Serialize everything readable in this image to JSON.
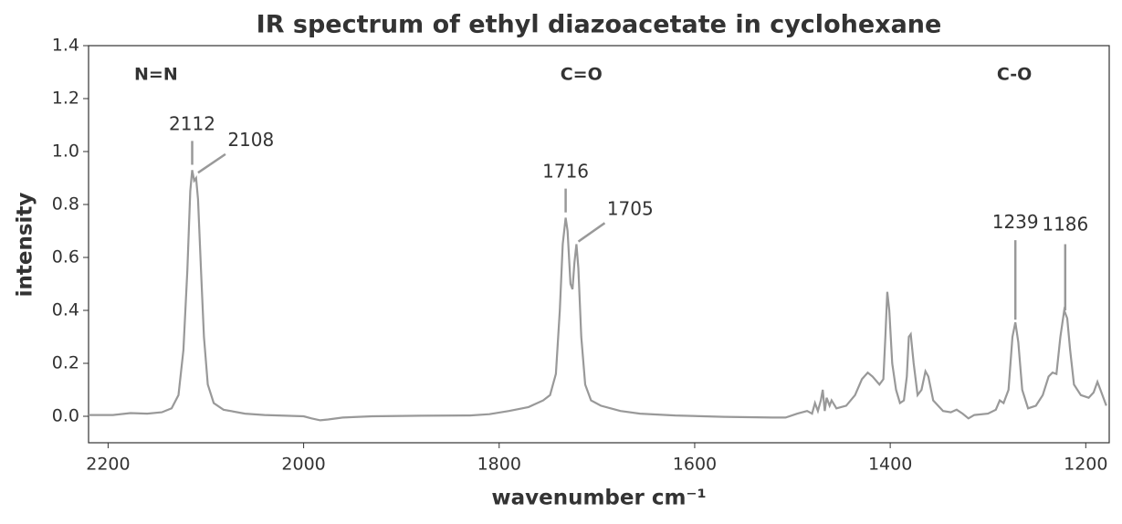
{
  "chart_data": {
    "type": "line",
    "title": "IR spectrum of ethyl diazoacetate in cyclohexane",
    "x_label": "wavenumber cm⁻¹",
    "y_label": "intensity",
    "xlim": [
      2220,
      1176
    ],
    "ylim": [
      -0.1,
      1.4
    ],
    "xticks": [
      2200,
      2000,
      1800,
      1600,
      1400,
      1200
    ],
    "yticks": [
      {
        "value": 0,
        "label": "0.0"
      },
      0.2,
      0.4,
      0.6,
      0.8,
      {
        "value": 1,
        "label": "1.0"
      },
      1.2,
      1.4
    ],
    "series": [
      {
        "name": "ethyl diazoacetate",
        "color": "#999999",
        "x": [
          2220,
          2195,
          2177,
          2160,
          2145,
          2135,
          2128,
          2123,
          2119,
          2116,
          2114,
          2112,
          2110,
          2108,
          2105,
          2102,
          2098,
          2092,
          2082,
          2060,
          2040,
          2000,
          1992,
          1983,
          1975,
          1960,
          1930,
          1880,
          1830,
          1810,
          1790,
          1770,
          1755,
          1748,
          1742,
          1738,
          1735,
          1732,
          1730,
          1727,
          1725,
          1723,
          1721,
          1719,
          1716,
          1712,
          1706,
          1696,
          1686,
          1676,
          1656,
          1620,
          1570,
          1520,
          1507,
          1495,
          1485,
          1480,
          1477,
          1474,
          1471,
          1469,
          1467,
          1465,
          1462,
          1460,
          1455,
          1445,
          1436,
          1429,
          1423,
          1418,
          1411,
          1407,
          1405,
          1403,
          1401,
          1398,
          1394,
          1390,
          1386,
          1383,
          1381,
          1379,
          1376,
          1372,
          1368,
          1364,
          1361,
          1356,
          1346,
          1338,
          1332,
          1326,
          1320,
          1314,
          1300,
          1292,
          1288,
          1284,
          1279,
          1275,
          1272,
          1269,
          1265,
          1259,
          1251,
          1244,
          1238,
          1234,
          1230,
          1226,
          1222,
          1219,
          1216,
          1212,
          1205,
          1197,
          1192,
          1188,
          1185,
          1179
        ],
        "values": [
          0.005,
          0.005,
          0.012,
          0.01,
          0.015,
          0.03,
          0.08,
          0.25,
          0.55,
          0.85,
          0.93,
          0.89,
          0.9,
          0.82,
          0.55,
          0.3,
          0.12,
          0.05,
          0.025,
          0.01,
          0.005,
          0,
          -0.008,
          -0.015,
          -0.012,
          -0.005,
          0,
          0.002,
          0.003,
          0.008,
          0.02,
          0.035,
          0.06,
          0.08,
          0.16,
          0.4,
          0.65,
          0.75,
          0.7,
          0.5,
          0.48,
          0.58,
          0.65,
          0.56,
          0.3,
          0.12,
          0.06,
          0.04,
          0.03,
          0.02,
          0.01,
          0.003,
          -0.002,
          -0.005,
          -0.005,
          0.01,
          0.02,
          0.01,
          0.05,
          0.02,
          0.06,
          0.1,
          0.02,
          0.07,
          0.04,
          0.06,
          0.03,
          0.04,
          0.08,
          0.14,
          0.165,
          0.15,
          0.12,
          0.14,
          0.3,
          0.47,
          0.4,
          0.2,
          0.1,
          0.05,
          0.06,
          0.15,
          0.3,
          0.31,
          0.2,
          0.08,
          0.1,
          0.17,
          0.15,
          0.06,
          0.02,
          0.015,
          0.025,
          0.01,
          -0.008,
          0.005,
          0.01,
          0.025,
          0.06,
          0.05,
          0.1,
          0.3,
          0.355,
          0.28,
          0.1,
          0.03,
          0.04,
          0.08,
          0.15,
          0.165,
          0.16,
          0.3,
          0.4,
          0.37,
          0.25,
          0.12,
          0.08,
          0.07,
          0.09,
          0.13,
          0.1,
          0.04
        ]
      }
    ],
    "group_labels": [
      {
        "text": "N=N",
        "x": 2151,
        "y": 1.29
      },
      {
        "text": "C=O",
        "x": 1716,
        "y": 1.29
      },
      {
        "text": "C-O",
        "x": 1273,
        "y": 1.29
      }
    ],
    "annotations": [
      {
        "text": "2112",
        "xytext": [
          2114,
          1.1
        ],
        "line_from": [
          2114,
          1.04
        ],
        "line_to": [
          2114,
          0.95
        ]
      },
      {
        "text": "2108",
        "xytext": [
          2054,
          1.04
        ],
        "line_from": [
          2080,
          0.99
        ],
        "line_to": [
          2108,
          0.92
        ]
      },
      {
        "text": "1716",
        "xytext": [
          1732,
          0.92
        ],
        "line_from": [
          1732,
          0.86
        ],
        "line_to": [
          1732,
          0.77
        ]
      },
      {
        "text": "1705",
        "xytext": [
          1666,
          0.78
        ],
        "line_from": [
          1692,
          0.73
        ],
        "line_to": [
          1719,
          0.66
        ]
      },
      {
        "text": "1239",
        "xytext": [
          1272,
          0.73
        ],
        "line_from": [
          1272,
          0.665
        ],
        "line_to": [
          1272,
          0.365
        ]
      },
      {
        "text": "1186",
        "xytext": [
          1221,
          0.72
        ],
        "line_from": [
          1221,
          0.65
        ],
        "line_to": [
          1221,
          0.4
        ]
      }
    ]
  }
}
